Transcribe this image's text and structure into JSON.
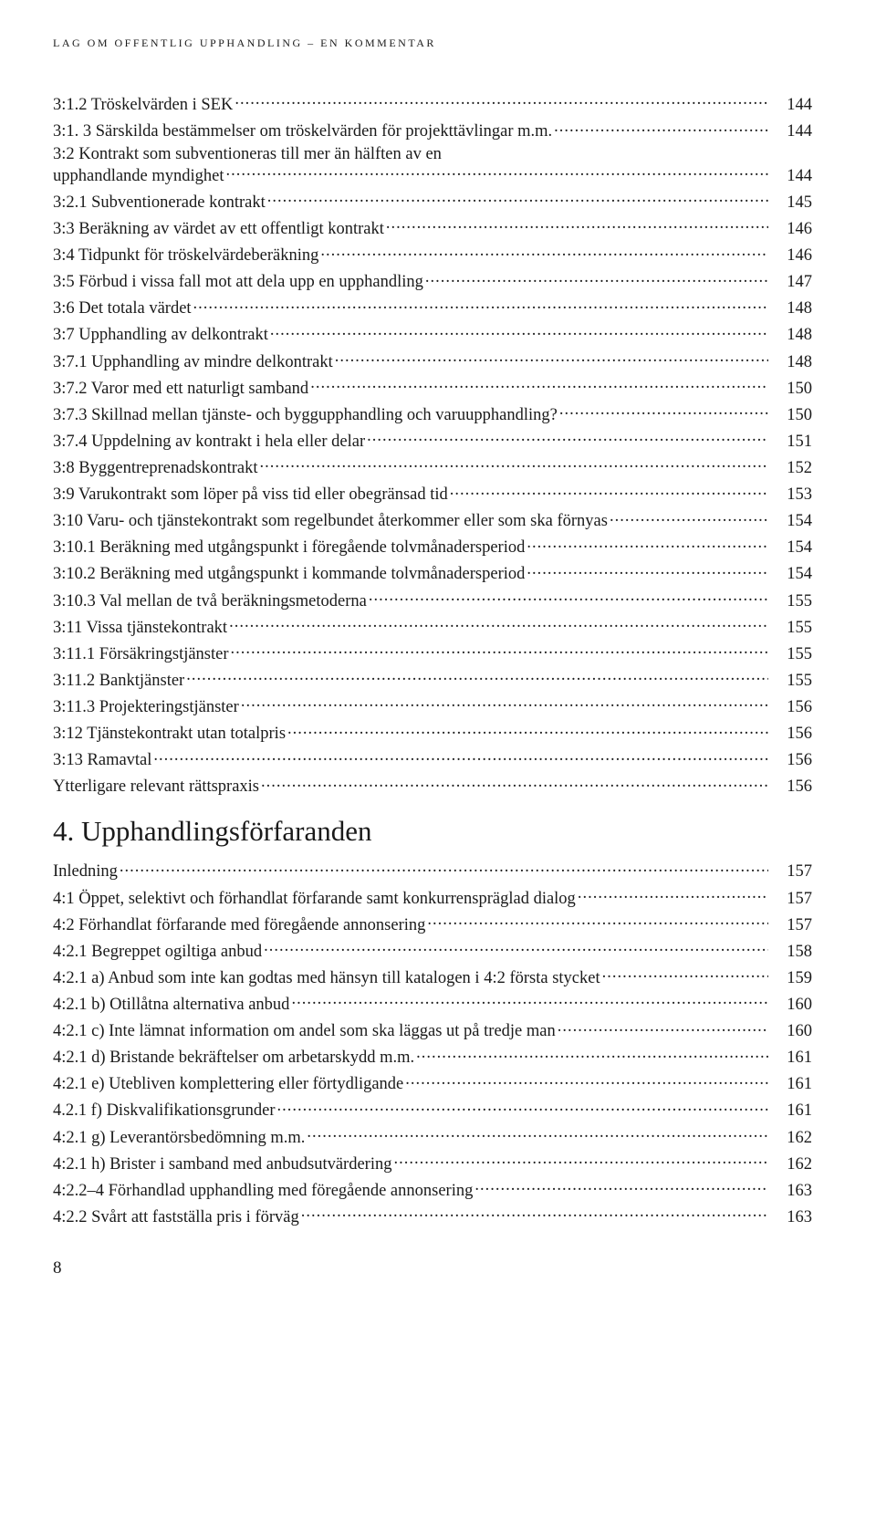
{
  "running_head": "LAG OM OFFENTLIG UPPHANDLING – EN KOMMENTAR",
  "page_number": "8",
  "section4_title": "4. Upphandlingsförfaranden",
  "toc_top": [
    {
      "label": "3:1.2 Tröskelvärden i SEK",
      "page": "144"
    },
    {
      "label": "3:1. 3 Särskilda bestämmelser om tröskelvärden för projekttävlingar m.m.",
      "page": "144"
    },
    {
      "label1": "3:2 Kontrakt som subventioneras till mer än hälften av en",
      "label2": "upphandlande myndighet",
      "page": "144",
      "multi": true
    },
    {
      "label": "3:2.1 Subventionerade kontrakt",
      "page": "145"
    },
    {
      "label": "3:3 Beräkning av värdet av ett offentligt kontrakt",
      "page": "146"
    },
    {
      "label": "3:4 Tidpunkt för tröskelvärdeberäkning",
      "page": "146"
    },
    {
      "label": "3:5 Förbud i vissa fall mot att dela upp en upphandling",
      "page": "147"
    },
    {
      "label": "3:6 Det totala värdet",
      "page": "148"
    },
    {
      "label": "3:7 Upphandling av delkontrakt",
      "page": "148"
    },
    {
      "label": "3:7.1 Upphandling av mindre delkontrakt",
      "page": "148"
    },
    {
      "label": "3:7.2 Varor med ett naturligt samband",
      "page": "150"
    },
    {
      "label": "3:7.3 Skillnad mellan tjänste- och byggupphandling och varuupphandling?",
      "page": "150"
    },
    {
      "label": "3:7.4 Uppdelning av kontrakt i hela eller delar",
      "page": "151"
    },
    {
      "label": "3:8 Byggentreprenadskontrakt",
      "page": "152"
    },
    {
      "label": "3:9 Varukontrakt som löper på viss tid eller obegränsad tid",
      "page": "153"
    },
    {
      "label": "3:10 Varu- och tjänstekontrakt som regelbundet återkommer eller som ska förnyas",
      "page": "154"
    },
    {
      "label": "3:10.1 Beräkning med utgångspunkt i föregående tolvmånadersperiod",
      "page": "154"
    },
    {
      "label": "3:10.2 Beräkning med utgångspunkt i kommande tolvmånadersperiod",
      "page": "154"
    },
    {
      "label": "3:10.3 Val mellan de två beräkningsmetoderna",
      "page": "155"
    },
    {
      "label": "3:11 Vissa tjänstekontrakt",
      "page": "155"
    },
    {
      "label": "3:11.1 Försäkringstjänster",
      "page": "155"
    },
    {
      "label": "3:11.2 Banktjänster",
      "page": "155"
    },
    {
      "label": "3:11.3 Projekteringstjänster",
      "page": "156"
    },
    {
      "label": "3:12 Tjänstekontrakt utan totalpris",
      "page": "156"
    },
    {
      "label": "3:13 Ramavtal",
      "page": "156"
    },
    {
      "label": "Ytterligare relevant rättspraxis",
      "page": "156"
    }
  ],
  "toc_section4": [
    {
      "label": "Inledning",
      "page": "157"
    },
    {
      "label": "4:1 Öppet, selektivt och förhandlat förfarande samt konkurrenspräglad dialog",
      "page": "157"
    },
    {
      "label": "4:2 Förhandlat förfarande med föregående annonsering",
      "page": "157"
    },
    {
      "label": "4:2.1 Begreppet ogiltiga anbud",
      "page": "158"
    },
    {
      "label": "4:2.1 a) Anbud som inte kan godtas med hänsyn till katalogen i 4:2 första stycket",
      "page": "159"
    },
    {
      "label": "4:2.1 b) Otillåtna alternativa anbud",
      "page": "160"
    },
    {
      "label": "4:2.1 c) Inte lämnat information om andel som ska läggas ut på tredje man",
      "page": "160"
    },
    {
      "label": "4:2.1 d) Bristande bekräftelser om arbetarskydd m.m.",
      "page": "161"
    },
    {
      "label": "4:2.1 e) Utebliven komplettering eller förtydligande",
      "page": "161"
    },
    {
      "label": "4.2.1 f) Diskvalifikationsgrunder",
      "page": "161"
    },
    {
      "label": "4:2.1 g) Leverantörsbedömning m.m.",
      "page": "162"
    },
    {
      "label": "4:2.1 h) Brister i samband med anbudsutvärdering",
      "page": "162"
    },
    {
      "label": "4:2.2–4 Förhandlad upphandling med föregående annonsering",
      "page": "163"
    },
    {
      "label": "4:2.2 Svårt att fastställa pris i förväg",
      "page": "163"
    }
  ]
}
